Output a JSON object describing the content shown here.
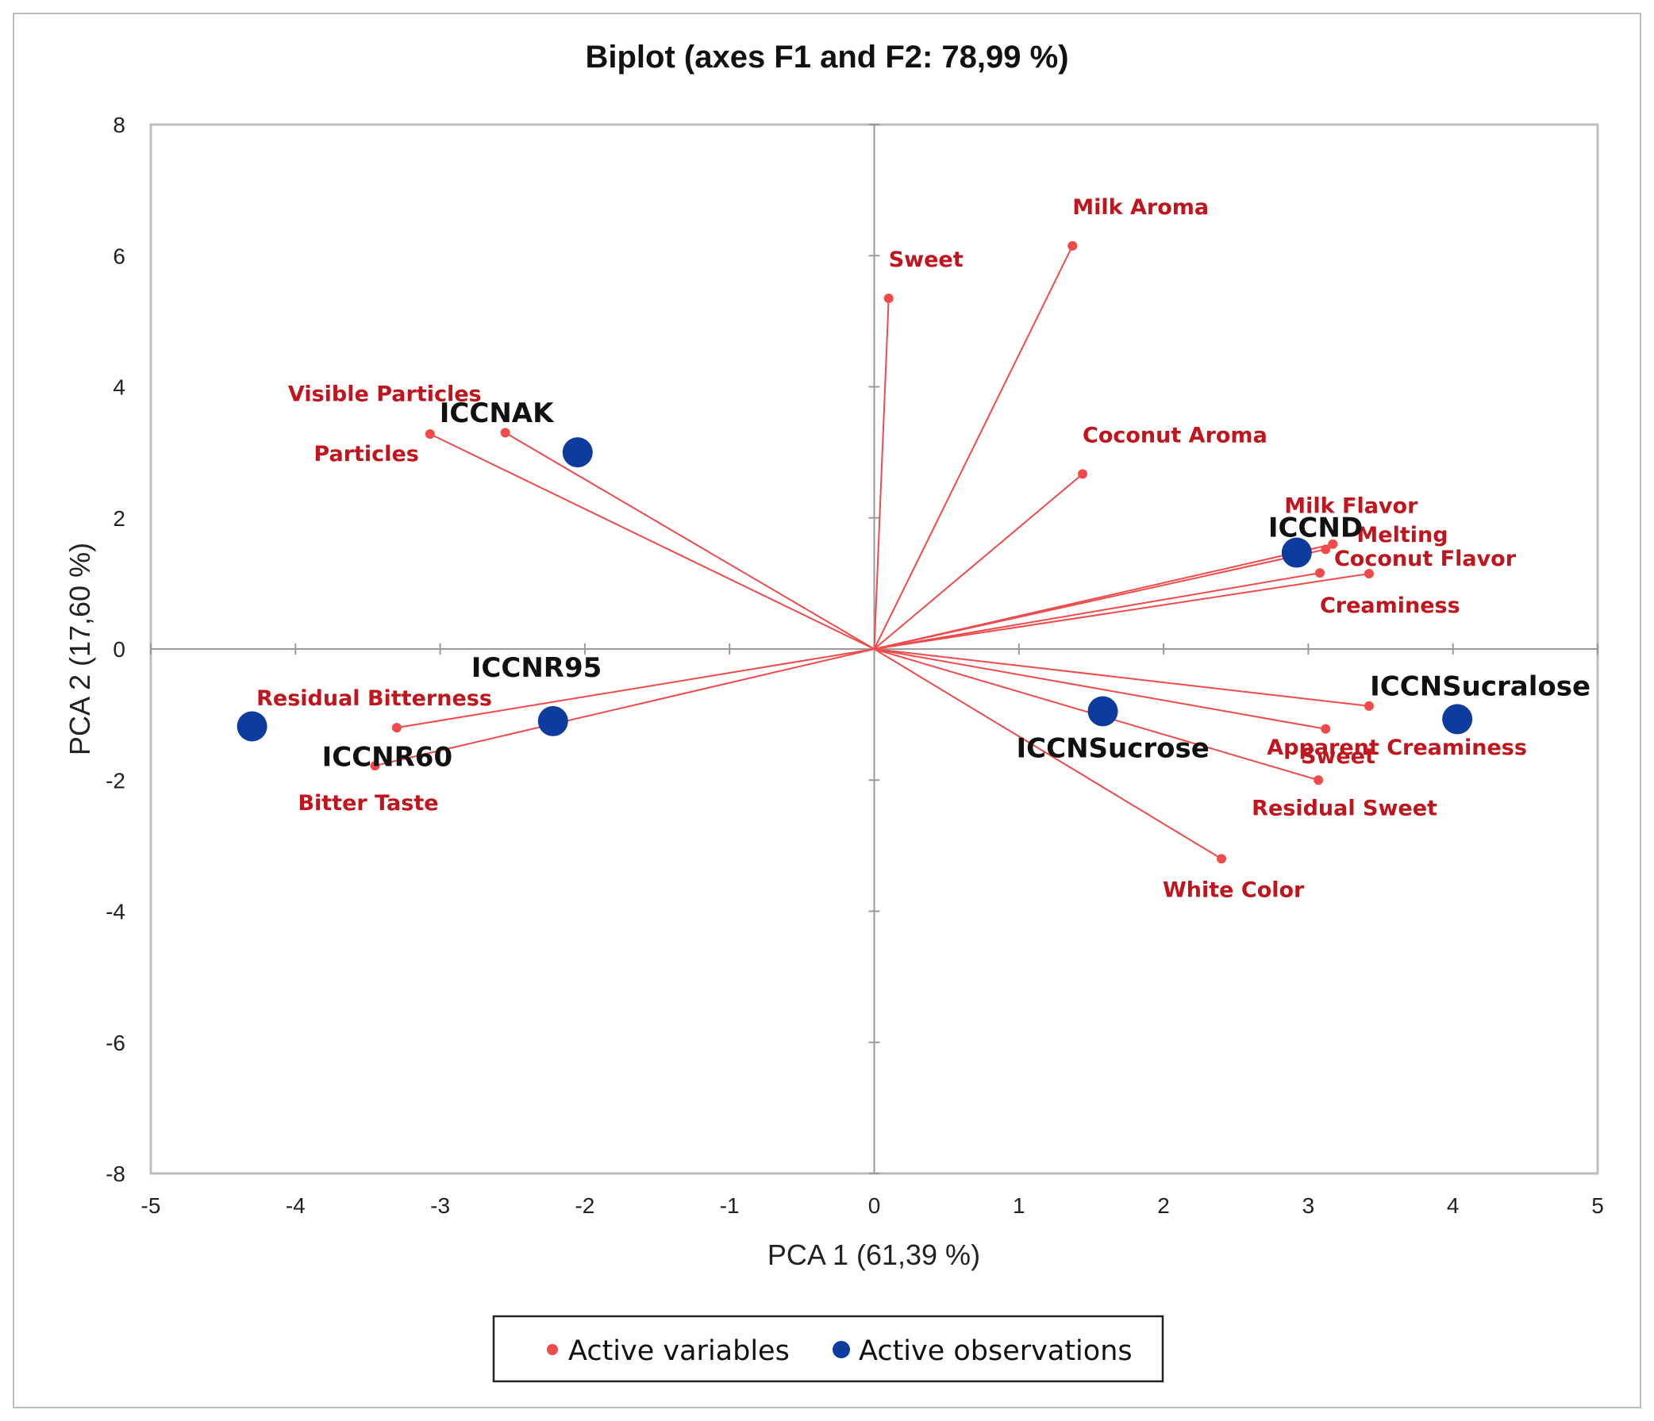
{
  "chart_data": {
    "type": "scatter",
    "title": "Biplot (axes F1 and F2: 78,99 %)",
    "xlabel": "PCA 1 (61,39 %)",
    "ylabel": "PCA 2 (17,60 %)",
    "xlim": [
      -5,
      5
    ],
    "ylim": [
      -8,
      8
    ],
    "xticks": [
      "-5",
      "-4",
      "-3",
      "-2",
      "-1",
      "0",
      "1",
      "2",
      "3",
      "4",
      "5"
    ],
    "yticks": [
      "8",
      "6",
      "4",
      "2",
      "0",
      "-2",
      "-4",
      "-6",
      "-8"
    ],
    "colors": {
      "variables": "#f04a4a",
      "variable_labels": "#c0151d",
      "observations": "#0d3c9e",
      "frame": "#bdbdbd",
      "axes": "#9a9a9a"
    },
    "series": [
      {
        "name": "Active variables",
        "kind": "vectors",
        "points": [
          {
            "label": "Milk Aroma",
            "x": 1.37,
            "y": 6.15,
            "anchor": "start"
          },
          {
            "label": "Sweet",
            "x": 0.1,
            "y": 5.35,
            "anchor": "start"
          },
          {
            "label": "Visible Particles",
            "x": -2.55,
            "y": 3.3,
            "anchor": "end"
          },
          {
            "label": "Particles",
            "x": -3.07,
            "y": 3.28,
            "anchor": "end"
          },
          {
            "label": "Coconut Aroma",
            "x": 1.44,
            "y": 2.67,
            "anchor": "start"
          },
          {
            "label": "Milk Flavor",
            "x": 3.12,
            "y": 1.52,
            "anchor": "start"
          },
          {
            "label": "Melting",
            "x": 3.17,
            "y": 1.6,
            "anchor": "start"
          },
          {
            "label": "Coconut Flavor",
            "x": 3.42,
            "y": 1.15,
            "anchor": "start"
          },
          {
            "label": "Creaminess",
            "x": 3.08,
            "y": 1.16,
            "anchor": "start"
          },
          {
            "label": "Residual Bitterness",
            "x": -3.3,
            "y": -1.2,
            "anchor": "end"
          },
          {
            "label": "Bitter Taste",
            "x": -3.45,
            "y": -1.78,
            "anchor": "end"
          },
          {
            "label": "Apparent Creaminess",
            "x": 3.12,
            "y": -1.22,
            "anchor": "start"
          },
          {
            "label": "Sweet",
            "x": 3.42,
            "y": -0.87,
            "anchor": "start"
          },
          {
            "label": "Residual Sweet",
            "x": 3.07,
            "y": -2.0,
            "anchor": "start"
          },
          {
            "label": "White Color",
            "x": 2.4,
            "y": -3.2,
            "anchor": "start"
          }
        ]
      },
      {
        "name": "Active observations",
        "kind": "points",
        "points": [
          {
            "label": "ICCNAK",
            "x": -2.05,
            "y": 3.0
          },
          {
            "label": "ICCND",
            "x": 2.92,
            "y": 1.47
          },
          {
            "label": "ICCNR95",
            "x": -2.22,
            "y": -1.1
          },
          {
            "label": "ICCNR60",
            "x": -4.3,
            "y": -1.18
          },
          {
            "label": "ICCNSucrose",
            "x": 1.58,
            "y": -0.95
          },
          {
            "label": "ICCNSucralose",
            "x": 4.03,
            "y": -1.07
          }
        ]
      }
    ],
    "legend": {
      "placement": "bottom-center",
      "entries": [
        "Active variables",
        "Active observations"
      ]
    },
    "grid": false
  }
}
